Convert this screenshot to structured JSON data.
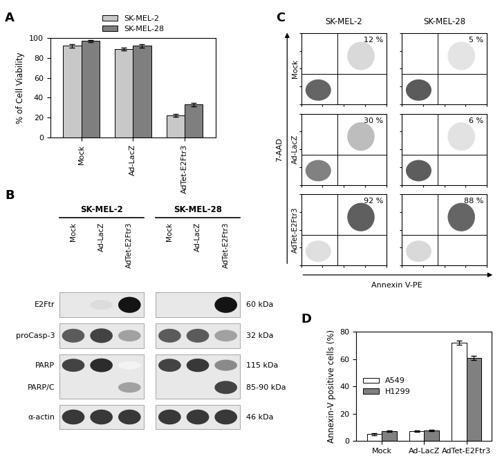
{
  "chart_data": [
    {
      "panel": "A",
      "type": "bar",
      "y_label": "% of Cell Viability",
      "categories": [
        "Mock",
        "Ad-LacZ",
        "AdTet-E2Ftr3"
      ],
      "series": [
        {
          "name": "SK-MEL-2",
          "color": "#c8c8c8",
          "values": [
            92,
            89,
            22
          ],
          "errors": [
            1.5,
            1.5,
            1.5
          ]
        },
        {
          "name": "SK-MEL-28",
          "color": "#7f7f7f",
          "values": [
            97,
            92,
            33
          ],
          "errors": [
            1,
            1.5,
            2
          ]
        }
      ],
      "ylim": [
        0,
        100
      ],
      "yticks": [
        0,
        20,
        40,
        60,
        80,
        100
      ],
      "legend": "upper center"
    },
    {
      "panel": "D",
      "type": "bar",
      "y_label": "Annexin-V positive cells (%)",
      "categories": [
        "Mock",
        "Ad-LacZ",
        "AdTet-E2Ftr3"
      ],
      "series": [
        {
          "name": "A549",
          "color": "#ffffff",
          "values": [
            5,
            7,
            72
          ],
          "errors": [
            0.8,
            0.5,
            1.5
          ]
        },
        {
          "name": "H1299",
          "color": "#808080",
          "values": [
            7,
            7.5,
            61
          ],
          "errors": [
            0.5,
            0.5,
            1.5
          ]
        }
      ],
      "ylim": [
        0,
        80
      ],
      "yticks": [
        0,
        20,
        40,
        60,
        80
      ],
      "legend": "center left"
    }
  ],
  "western_blot": {
    "panel": "B",
    "cell_lines": [
      "SK-MEL-2",
      "SK-MEL-28"
    ],
    "lanes": [
      "Mock",
      "Ad-LacZ",
      "AdTet-E2Ftr3"
    ],
    "rows": [
      {
        "labels": [
          "E2Ftr"
        ],
        "kda": [
          "60 kDa"
        ],
        "bands": [
          [
            0,
            0.15,
            1.0,
            0,
            0,
            1.0
          ]
        ]
      },
      {
        "labels": [
          "proCasp-3"
        ],
        "kda": [
          "32 kDa"
        ],
        "bands": [
          [
            0.7,
            0.8,
            0.4,
            0.7,
            0.7,
            0.4
          ]
        ]
      },
      {
        "labels": [
          "PARP",
          "PARP/C"
        ],
        "kda": [
          "115 kDa",
          "85-90 kDa"
        ],
        "bands": [
          [
            0.8,
            0.9,
            0.05,
            0.8,
            0.85,
            0.5
          ],
          [
            0,
            0,
            0.4,
            0,
            0.1,
            0.8
          ]
        ]
      },
      {
        "labels": [
          "α-actin"
        ],
        "kda": [
          "46 kDa"
        ],
        "bands": [
          [
            0.85,
            0.85,
            0.85,
            0.85,
            0.85,
            0.85
          ]
        ]
      }
    ]
  },
  "flow_cytometry": {
    "panel": "C",
    "type": "scatter",
    "x_label": "Annexin V-PE",
    "y_label": "7-AAD",
    "rows": [
      "Mock",
      "Ad-LacZ",
      "AdTet-E2Ftr3"
    ],
    "series": [
      {
        "name": "SK-MEL-2",
        "values": [
          12,
          30,
          92
        ],
        "value_labels": [
          "12 %",
          "30 %",
          "92 %"
        ]
      },
      {
        "name": "SK-MEL-28",
        "values": [
          5,
          6,
          88
        ],
        "value_labels": [
          "5 %",
          "6 %",
          "88 %"
        ]
      }
    ],
    "xlim": [
      1,
      10000
    ],
    "ylim": [
      1,
      10000
    ],
    "xticks": [
      1,
      10,
      100,
      1000,
      10000
    ],
    "yticks": [
      1,
      10,
      100,
      1000,
      10000
    ],
    "log": true,
    "tick_labels": false,
    "quadrant_gate": {
      "x": 50,
      "y": 50
    }
  }
}
